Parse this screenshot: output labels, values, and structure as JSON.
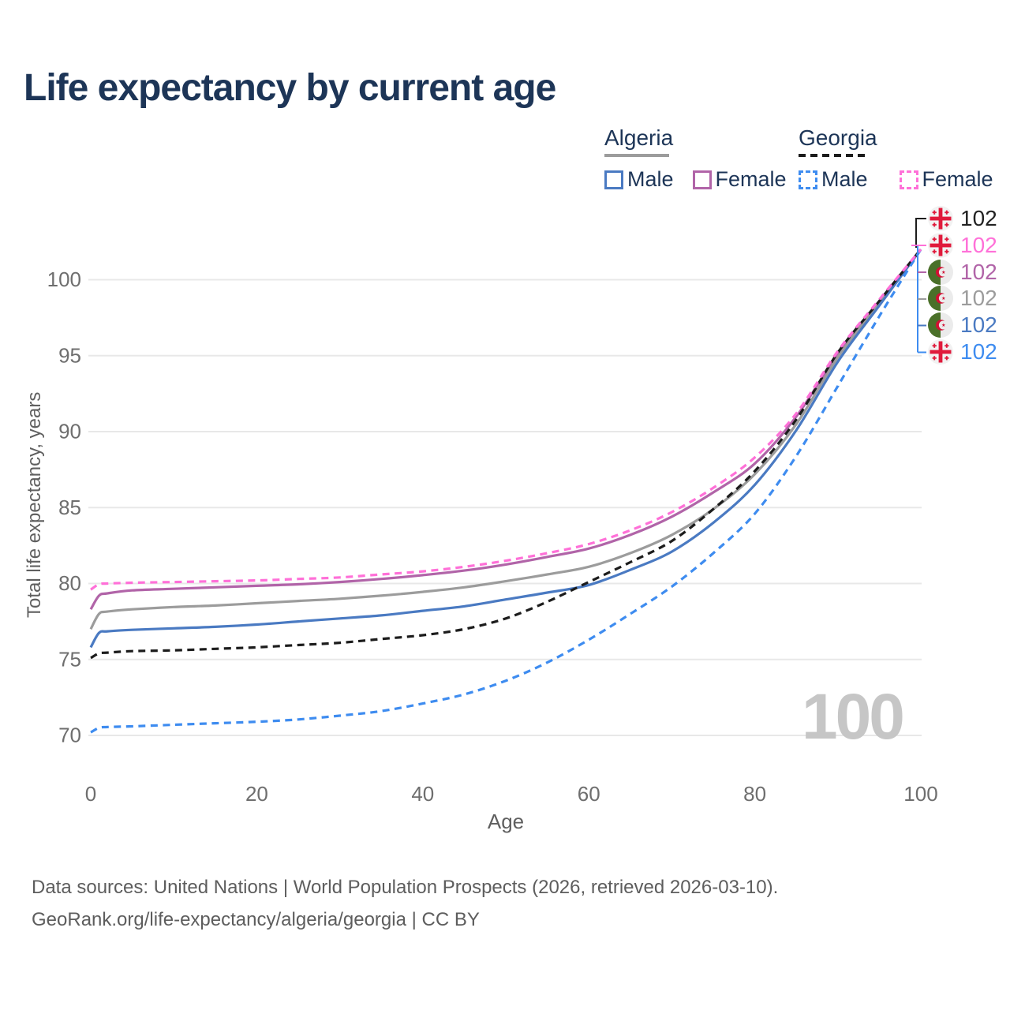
{
  "title": "Life expectancy by current age",
  "age_counter": "100",
  "legend": {
    "groups": [
      {
        "country": "Algeria",
        "line_style": "solid",
        "line_color": "#9c9c9c",
        "items": [
          {
            "label": "Male",
            "color": "#4a7ac2",
            "dash": false
          },
          {
            "label": "Female",
            "color": "#b164a8",
            "dash": false
          }
        ]
      },
      {
        "country": "Georgia",
        "line_style": "dashed",
        "line_color": "#1c1c1c",
        "items": [
          {
            "label": "Male",
            "color": "#3e8cf0",
            "dash": true
          },
          {
            "label": "Female",
            "color": "#ff70d8",
            "dash": true
          }
        ]
      }
    ]
  },
  "chart_data": {
    "type": "line",
    "title": "Life expectancy by current age",
    "xlabel": "Age",
    "ylabel": "Total life expectancy, years",
    "xlim": [
      0,
      100
    ],
    "ylim": [
      70,
      102
    ],
    "xticks": [
      0,
      20,
      40,
      60,
      80,
      100
    ],
    "yticks": [
      70,
      75,
      80,
      85,
      90,
      95,
      100
    ],
    "grid": true,
    "legend_position": "top-right",
    "x": [
      0,
      1,
      2,
      5,
      10,
      15,
      20,
      25,
      30,
      35,
      40,
      45,
      50,
      55,
      60,
      65,
      70,
      75,
      80,
      85,
      90,
      95,
      100
    ],
    "series": [
      {
        "id": "algeria_female",
        "name": "Algeria Female",
        "country": "Algeria",
        "sex": "Female",
        "color": "#b164a8",
        "dash": false,
        "values": [
          78.3,
          79.2,
          79.35,
          79.55,
          79.65,
          79.75,
          79.85,
          79.95,
          80.1,
          80.3,
          80.55,
          80.85,
          81.25,
          81.75,
          82.3,
          83.2,
          84.4,
          86.0,
          87.9,
          91.0,
          95.1,
          98.6,
          102
        ]
      },
      {
        "id": "algeria_total",
        "name": "Algeria",
        "country": "Algeria",
        "sex": "Both",
        "color": "#9c9c9c",
        "dash": false,
        "values": [
          77.0,
          78.0,
          78.15,
          78.3,
          78.45,
          78.55,
          78.7,
          78.85,
          79.0,
          79.2,
          79.45,
          79.75,
          80.15,
          80.6,
          81.1,
          82.0,
          83.2,
          84.9,
          87.2,
          90.5,
          94.9,
          98.5,
          102
        ]
      },
      {
        "id": "algeria_male",
        "name": "Algeria Male",
        "country": "Algeria",
        "sex": "Male",
        "color": "#4a7ac2",
        "dash": false,
        "values": [
          75.8,
          76.75,
          76.85,
          76.95,
          77.05,
          77.15,
          77.3,
          77.5,
          77.7,
          77.9,
          78.2,
          78.5,
          78.95,
          79.4,
          79.9,
          80.9,
          82.1,
          84.0,
          86.5,
          90.1,
          94.6,
          98.3,
          102
        ]
      },
      {
        "id": "georgia_total",
        "name": "Georgia",
        "country": "Georgia",
        "sex": "Both",
        "color": "#1c1c1c",
        "dash": true,
        "values": [
          75.1,
          75.4,
          75.45,
          75.55,
          75.6,
          75.7,
          75.8,
          75.95,
          76.1,
          76.35,
          76.6,
          77.0,
          77.7,
          78.8,
          80.1,
          81.4,
          82.8,
          84.9,
          87.4,
          90.8,
          95.2,
          98.6,
          102
        ]
      },
      {
        "id": "georgia_male",
        "name": "Georgia Male",
        "country": "Georgia",
        "sex": "Male",
        "color": "#3e8cf0",
        "dash": true,
        "values": [
          70.2,
          70.5,
          70.55,
          70.6,
          70.7,
          70.8,
          70.9,
          71.05,
          71.3,
          71.6,
          72.1,
          72.7,
          73.6,
          74.8,
          76.3,
          78.0,
          79.8,
          82.0,
          84.6,
          88.4,
          93.0,
          97.6,
          102
        ]
      },
      {
        "id": "georgia_female",
        "name": "Georgia Female",
        "country": "Georgia",
        "sex": "Female",
        "color": "#ff70d8",
        "dash": true,
        "values": [
          79.6,
          79.95,
          80.0,
          80.05,
          80.1,
          80.15,
          80.2,
          80.3,
          80.4,
          80.6,
          80.8,
          81.1,
          81.5,
          82.0,
          82.6,
          83.5,
          84.7,
          86.3,
          88.3,
          91.2,
          95.3,
          98.7,
          102
        ]
      }
    ],
    "end_labels": [
      {
        "flag": "georgia",
        "series": "Georgia",
        "value": "102",
        "color": "#222222"
      },
      {
        "flag": "georgia",
        "series": "Georgia Female",
        "value": "102",
        "color": "#ff70d8"
      },
      {
        "flag": "algeria",
        "series": "Algeria Female",
        "value": "102",
        "color": "#b164a8"
      },
      {
        "flag": "algeria",
        "series": "Algeria",
        "value": "102",
        "color": "#9c9c9c"
      },
      {
        "flag": "algeria",
        "series": "Algeria Male",
        "value": "102",
        "color": "#4a7ac2"
      },
      {
        "flag": "georgia",
        "series": "Georgia Male",
        "value": "102",
        "color": "#3e8cf0"
      }
    ]
  },
  "footer": {
    "line1": "Data sources: United Nations | World Population Prospects (2026, retrieved 2026-03-10).",
    "line2": "GeoRank.org/life-expectancy/algeria/georgia | CC BY"
  }
}
